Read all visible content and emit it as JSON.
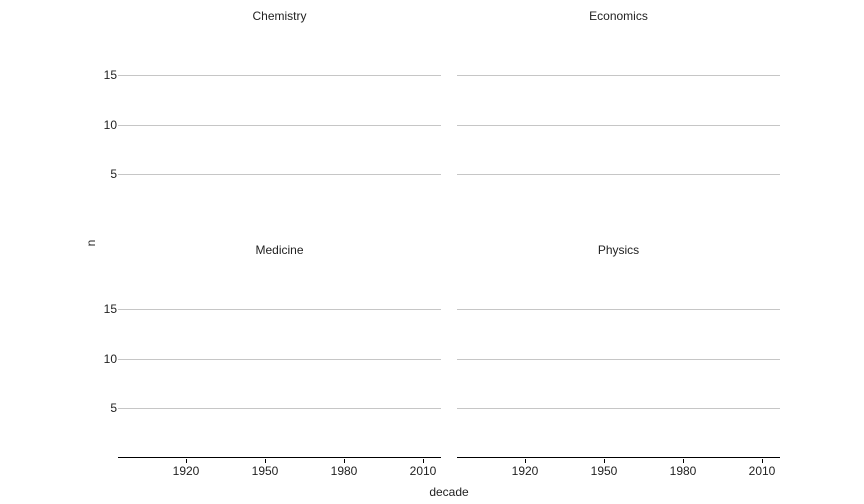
{
  "chart_data": {
    "type": "scatter",
    "title": "",
    "xlabel": "decade",
    "ylabel": "n",
    "facets": [
      {
        "label": "Chemistry",
        "row": 0,
        "col": 0,
        "x": [],
        "values": []
      },
      {
        "label": "Economics",
        "row": 0,
        "col": 1,
        "x": [],
        "values": []
      },
      {
        "label": "Medicine",
        "row": 1,
        "col": 0,
        "x": [],
        "values": []
      },
      {
        "label": "Physics",
        "row": 1,
        "col": 1,
        "x": [],
        "values": []
      }
    ],
    "x_ticks": [
      "1920",
      "1950",
      "1980",
      "2010"
    ],
    "y_ticks": [
      "15",
      "10",
      "5"
    ],
    "xlim": [
      1894,
      2017
    ],
    "ylim": [
      0,
      19.5
    ],
    "grid": "horizontal-major-only",
    "legend": "none",
    "panels_empty": true,
    "colors": {
      "background": "#ffffff",
      "gridline": "#c6c6c6",
      "axis_line": "#000000",
      "text": "#222222"
    }
  }
}
